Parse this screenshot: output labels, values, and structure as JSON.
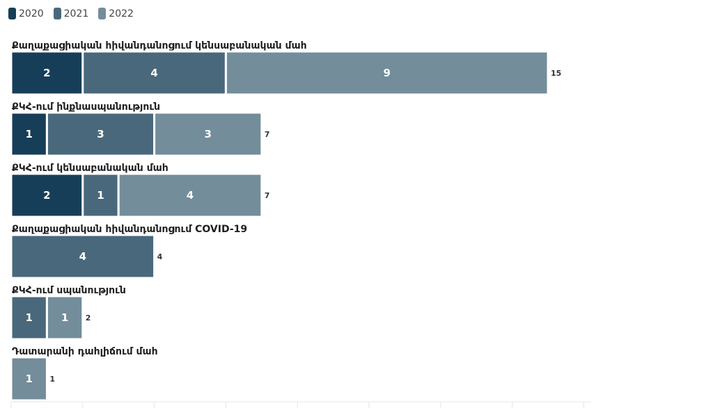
{
  "chart_data": {
    "type": "bar",
    "orientation": "horizontal",
    "stacked": true,
    "legend_position": "top-left",
    "series": [
      {
        "name": "2020",
        "color": "#173e58",
        "values": [
          2,
          1,
          2,
          0,
          0,
          0
        ]
      },
      {
        "name": "2021",
        "color": "#4a687c",
        "values": [
          4,
          3,
          1,
          4,
          1,
          0
        ]
      },
      {
        "name": "2022",
        "color": "#738d9a",
        "values": [
          9,
          3,
          4,
          0,
          1,
          1
        ]
      }
    ],
    "categories": [
      "Քաղաքացիական հիվանդանոցում կենսաբանական մահ",
      "ՔԿՀ-ում ինքնասպանություն",
      "ՔԿՀ-ում կենսաբանական մահ",
      "Քաղաքացիական հիվանդանոցում COVID-19",
      "ՔԿՀ-ում սպանություն",
      "Դատարանի դահլիճում մահ"
    ],
    "totals": [
      15,
      7,
      7,
      4,
      2,
      1
    ],
    "xlim": [
      0,
      16
    ],
    "grid": true
  }
}
